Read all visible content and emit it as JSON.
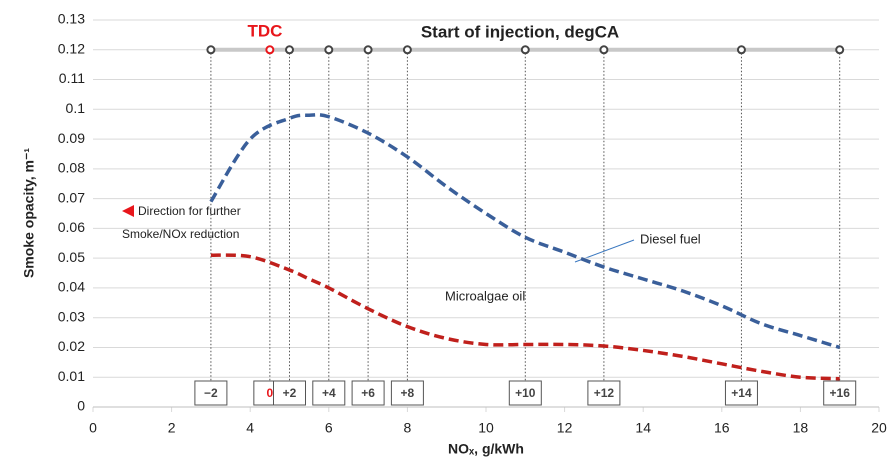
{
  "chart_data": {
    "type": "line",
    "title": "Start of injection, degCA",
    "xlabel": "NOₓ, g/kWh",
    "ylabel": "Smoke opacity, m⁻¹",
    "x": [
      3,
      4,
      5,
      5.5,
      6,
      7,
      8,
      9,
      10,
      11,
      12,
      13,
      14,
      15,
      16,
      17,
      18,
      19
    ],
    "series": [
      {
        "name": "Diesel fuel",
        "color": "#3a5f9a",
        "values": [
          0.069,
          0.09,
          0.097,
          0.098,
          0.0975,
          0.092,
          0.084,
          0.074,
          0.065,
          0.057,
          0.052,
          0.047,
          0.043,
          0.039,
          0.034,
          0.028,
          0.024,
          0.02
        ]
      },
      {
        "name": "Microalgae oil",
        "color": "#c0201c",
        "values": [
          0.051,
          0.0505,
          0.046,
          0.043,
          0.04,
          0.033,
          0.027,
          0.023,
          0.021,
          0.021,
          0.021,
          0.0205,
          0.019,
          0.017,
          0.0145,
          0.012,
          0.01,
          0.0095
        ]
      }
    ],
    "injection": {
      "x": [
        3,
        4.5,
        5,
        6,
        7,
        8,
        11,
        13,
        16.5,
        19
      ],
      "values": [
        0.12,
        0.12,
        0.12,
        0.12,
        0.12,
        0.12,
        0.12,
        0.12,
        0.12,
        0.12
      ],
      "labels": [
        "−2",
        "0",
        "+2",
        "+4",
        "+6",
        "+8",
        "+10",
        "+12",
        "+14",
        "+16"
      ],
      "colors": [
        "#444",
        "#e8161b",
        "#444",
        "#444",
        "#444",
        "#444",
        "#444",
        "#444",
        "#444",
        "#444"
      ],
      "line_color": "#c8c8c8"
    },
    "annotations": {
      "tdc": "TDC",
      "direction": [
        "Direction for further",
        "Smoke/NOx reduction"
      ]
    },
    "xlim": [
      0,
      20
    ],
    "ylim": [
      0,
      0.13
    ],
    "xticks": [
      0,
      2,
      4,
      6,
      8,
      10,
      12,
      14,
      16,
      18,
      20
    ],
    "yticks": [
      0,
      0.01,
      0.02,
      0.03,
      0.04,
      0.05,
      0.06,
      0.07,
      0.08,
      0.09,
      0.1,
      0.11,
      0.12,
      0.13
    ],
    "grid": true
  }
}
